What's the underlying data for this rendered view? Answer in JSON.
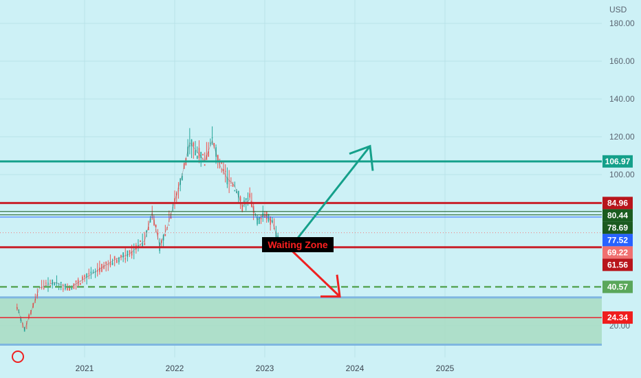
{
  "chart_data": {
    "type": "line",
    "currency": "USD",
    "y_ticks": [
      "180.00",
      "160.00",
      "140.00",
      "120.00",
      "100.00",
      "20.00"
    ],
    "x_ticks": [
      "2021",
      "2022",
      "2023",
      "2024",
      "2025"
    ],
    "ylim": [
      0,
      190
    ],
    "grid": true,
    "price": {
      "x": [
        "2020-04",
        "2020-05",
        "2020-07",
        "2020-09",
        "2020-11",
        "2021-01",
        "2021-03",
        "2021-05",
        "2021-07",
        "2021-09",
        "2021-10",
        "2021-11",
        "2021-12",
        "2022-01",
        "2022-02",
        "2022-03",
        "2022-04",
        "2022-05",
        "2022-06",
        "2022-07",
        "2022-08",
        "2022-09",
        "2022-10",
        "2022-11",
        "2022-12",
        "2023-01",
        "2023-02",
        "2023-03"
      ],
      "y": [
        30,
        18,
        40,
        43,
        40,
        45,
        50,
        55,
        58,
        65,
        80,
        62,
        72,
        86,
        100,
        117,
        112,
        107,
        118,
        105,
        98,
        94,
        83,
        87,
        76,
        79,
        75,
        62
      ]
    },
    "levels": [
      {
        "value": 106.97,
        "label": "106.97",
        "color": "#14a08a",
        "style": "solid"
      },
      {
        "value": 84.96,
        "label": "84.96",
        "color": "#c8212a",
        "style": "solid"
      },
      {
        "value": 80.44,
        "label": "80.44",
        "color": "#1a5c1f",
        "style": "solid"
      },
      {
        "value": 78.69,
        "label": "78.69",
        "color": "#1b5a1f",
        "style": "solid"
      },
      {
        "value": 77.52,
        "label": "77.52",
        "color": "#2762ff",
        "style": "solid"
      },
      {
        "value": 69.22,
        "label": "69.22",
        "color": "#f27a7a",
        "style": "dotted"
      },
      {
        "value": 61.56,
        "label": "61.56",
        "color": "#c8212a",
        "style": "solid"
      },
      {
        "value": 40.57,
        "label": "40.57",
        "color": "#5aa75a",
        "style": "dashed"
      },
      {
        "value": 24.34,
        "label": "24.34",
        "color": "#e8232d",
        "style": "solid"
      }
    ],
    "zone": {
      "from": 10,
      "to": 35,
      "color": "#a8dcc2"
    },
    "annotation": "Waiting Zone",
    "arrows": [
      {
        "direction": "up",
        "color": "#14a08a"
      },
      {
        "direction": "down",
        "color": "#ef2020"
      }
    ]
  }
}
